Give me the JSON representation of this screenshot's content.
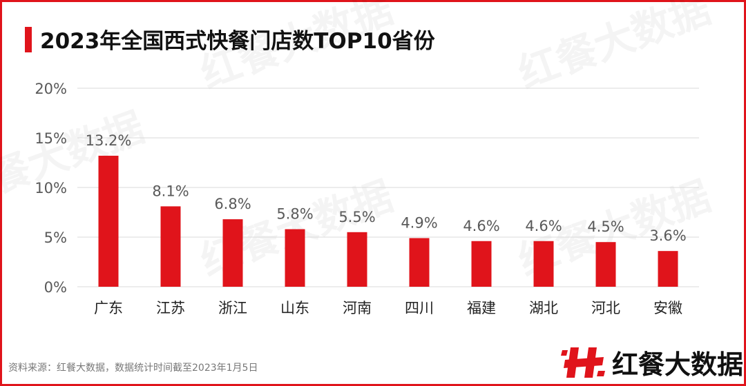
{
  "title": "2023年全国西式快餐门店数TOP10省份",
  "source": "资料来源：红餐大数据，数据统计时间截至2023年1月5日",
  "brand": {
    "name": "红餐大数据",
    "logo_icon": "h-logo-icon"
  },
  "colors": {
    "accent": "#E0141B",
    "bar": "#E0141B",
    "grid": "#D9D9D9",
    "text": "#595959"
  },
  "chart_data": {
    "type": "bar",
    "title": "2023年全国西式快餐门店数TOP10省份",
    "xlabel": "",
    "ylabel": "",
    "ylim": [
      0,
      20
    ],
    "yticks": [
      0,
      5,
      10,
      15,
      20
    ],
    "ytick_labels": [
      "0%",
      "5%",
      "10%",
      "15%",
      "20%"
    ],
    "categories": [
      "广东",
      "江苏",
      "浙江",
      "山东",
      "河南",
      "四川",
      "福建",
      "湖北",
      "河北",
      "安徽"
    ],
    "values": [
      13.2,
      8.1,
      6.8,
      5.8,
      5.5,
      4.9,
      4.6,
      4.6,
      4.5,
      3.6
    ],
    "value_labels": [
      "13.2%",
      "8.1%",
      "6.8%",
      "5.8%",
      "5.5%",
      "4.9%",
      "4.6%",
      "4.6%",
      "4.5%",
      "3.6%"
    ],
    "grid": true,
    "legend": "none"
  }
}
